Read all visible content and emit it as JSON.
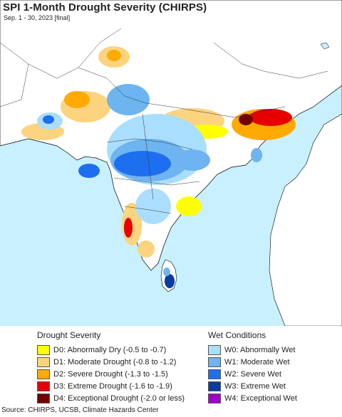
{
  "header": {
    "title": "SPI 1-Month Drought Severity (CHIRPS)",
    "subtitle": "Sep. 1 - 30, 2023 [final]"
  },
  "map": {
    "ocean_color": "#c8f0ff",
    "land_color": "#ffffff",
    "border_color": "#000000"
  },
  "legend": {
    "drought": {
      "heading": "Drought Severity",
      "items": [
        {
          "label": "D0: Abnormally Dry (-0.5 to -0.7)",
          "color": "#ffff00"
        },
        {
          "label": "D1: Moderate Drought (-0.8 to -1.2)",
          "color": "#fcd37f"
        },
        {
          "label": "D2: Severe Drought (-1.3 to -1.5)",
          "color": "#ffaa00"
        },
        {
          "label": "D3: Extreme Drought (-1.6 to -1.9)",
          "color": "#e60000"
        },
        {
          "label": "D4: Exceptional Drought (-2.0 or less)",
          "color": "#730000"
        }
      ]
    },
    "wet": {
      "heading": "Wet Conditions",
      "items": [
        {
          "label": "W0: Abnormally Wet",
          "color": "#aadeff"
        },
        {
          "label": "W1: Moderate Wet",
          "color": "#6eb4f0"
        },
        {
          "label": "W2: Severe Wet",
          "color": "#1e6ef0"
        },
        {
          "label": "W3: Extreme Wet",
          "color": "#0a3ca0"
        },
        {
          "label": "W4: Exceptional Wet",
          "color": "#a000c8"
        }
      ]
    }
  },
  "footer": {
    "source": "Source: CHIRPS, UCSB, Climate Hazards Center"
  }
}
